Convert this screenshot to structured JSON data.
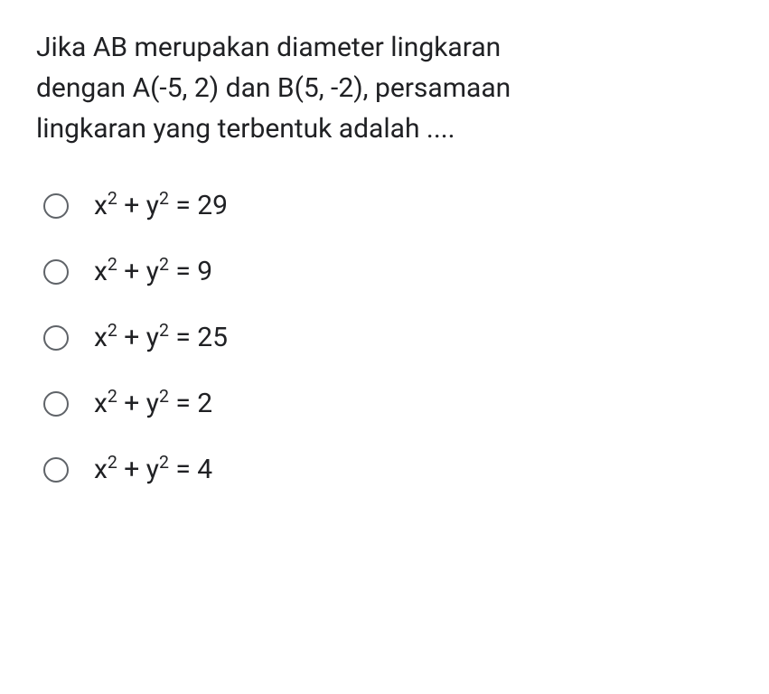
{
  "question": {
    "line1": "Jika AB merupakan diameter lingkaran",
    "line2": "dengan A(-5, 2) dan B(5, -2), persamaan",
    "line3": "lingkaran yang terbentuk adalah ...."
  },
  "options": [
    {
      "lhs_x": "x",
      "exp_x": "2",
      "plus": " + ",
      "lhs_y": "y",
      "exp_y": "2",
      "eq": " = ",
      "rhs": "29"
    },
    {
      "lhs_x": "x",
      "exp_x": "2",
      "plus": " + ",
      "lhs_y": "y",
      "exp_y": "2",
      "eq": " = ",
      "rhs": "9"
    },
    {
      "lhs_x": "x",
      "exp_x": "2",
      "plus": " + ",
      "lhs_y": "y",
      "exp_y": "2",
      "eq": " = ",
      "rhs": "25"
    },
    {
      "lhs_x": "x",
      "exp_x": "2",
      "plus": " + ",
      "lhs_y": "y",
      "exp_y": "2",
      "eq": " = ",
      "rhs": "2"
    },
    {
      "lhs_x": "x",
      "exp_x": "2",
      "plus": " + ",
      "lhs_y": "y",
      "exp_y": "2",
      "eq": " = ",
      "rhs": "4"
    }
  ],
  "styling": {
    "background_color": "#ffffff",
    "text_color": "#202124",
    "radio_border_color": "#5f6368",
    "question_fontsize": 30,
    "option_fontsize": 30,
    "radio_size": 28,
    "option_gap": 38
  }
}
